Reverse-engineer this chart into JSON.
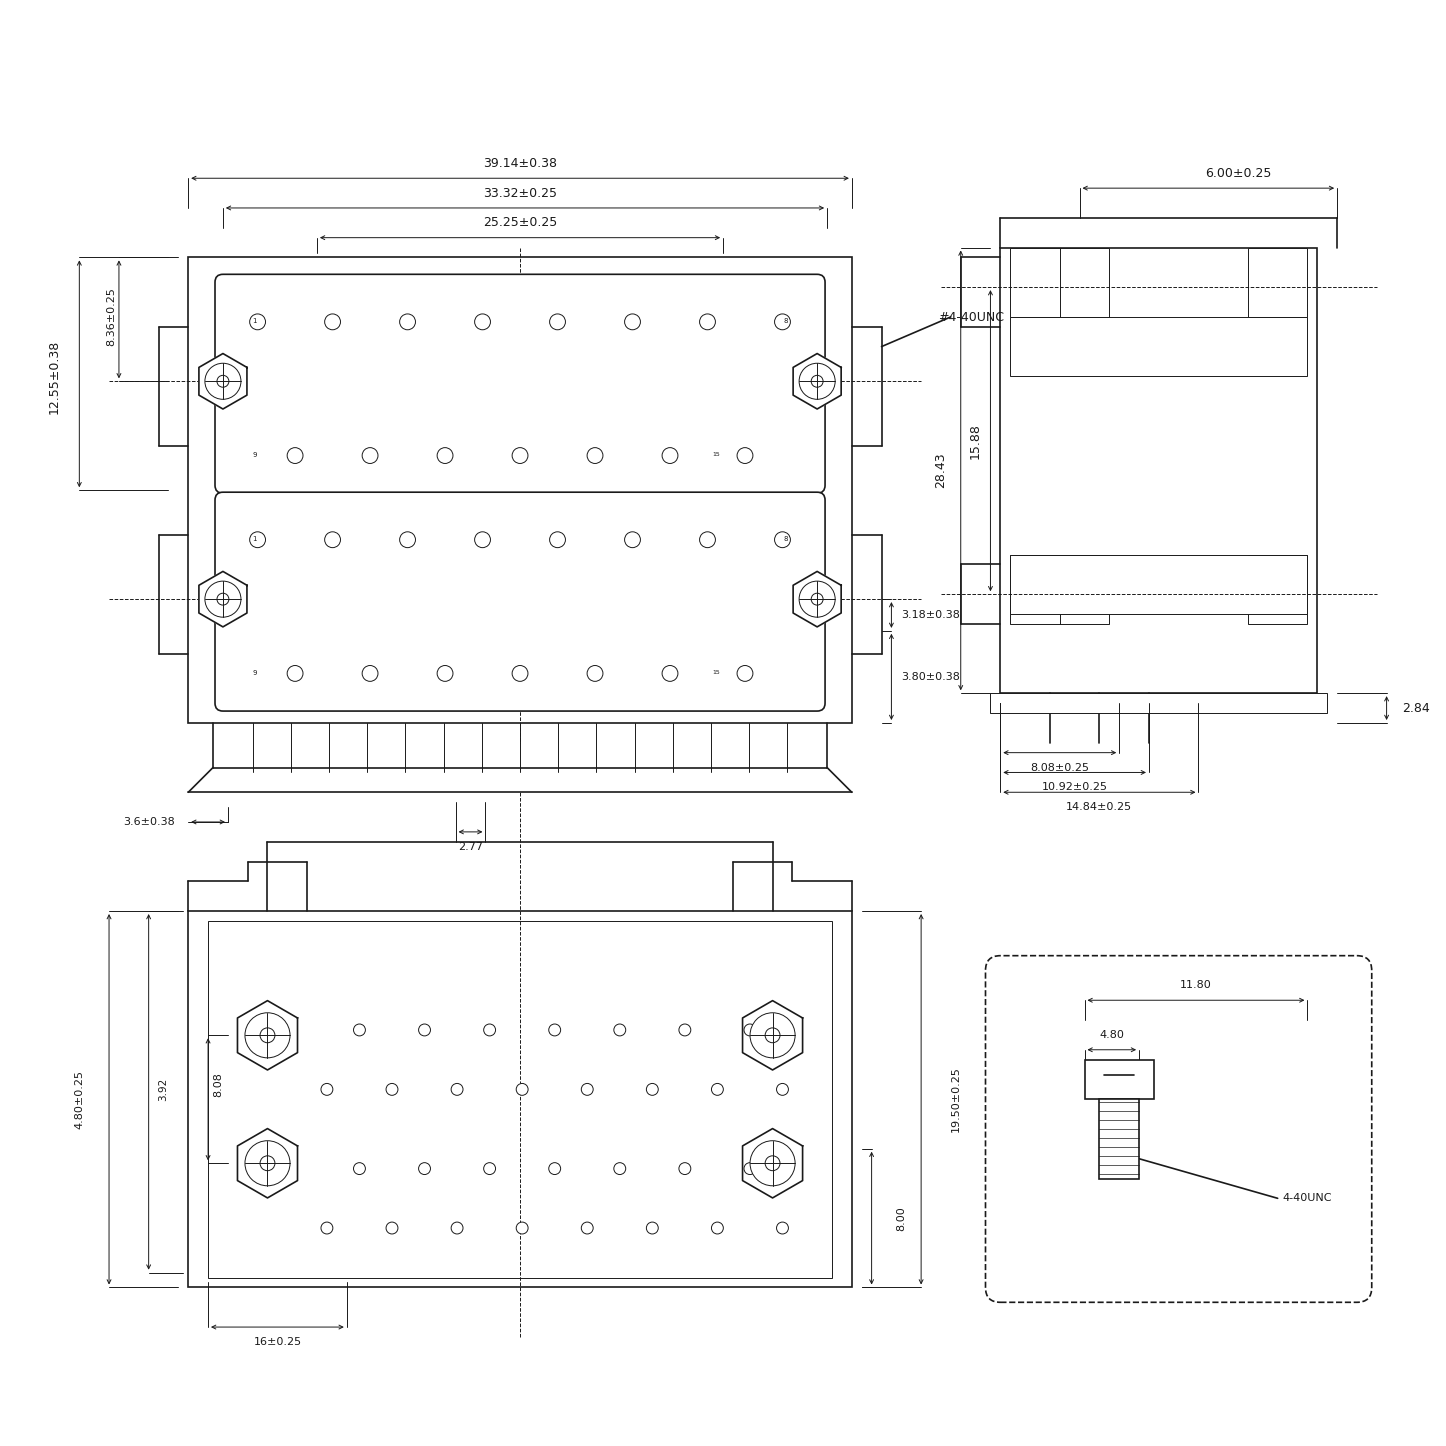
{
  "bg_color": "#ffffff",
  "line_color": "#1a1a1a",
  "dim_color": "#1a1a1a",
  "line_width": 1.2,
  "thin_lw": 0.7,
  "font_size": 9
}
